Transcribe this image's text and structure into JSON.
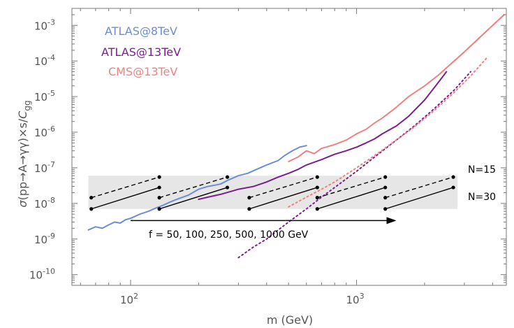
{
  "chart_data": {
    "type": "line",
    "xlabel": "m (GeV)",
    "ylabel": "σ(pp→A→γγ)×s/C_gg",
    "x_scale": "log",
    "y_scale": "log",
    "xlim": [
      55,
      4600
    ],
    "ylim": [
      5e-11,
      0.003
    ],
    "x_ticks": [
      {
        "value": 100,
        "base": "10",
        "exp": "2"
      },
      {
        "value": 1000,
        "base": "10",
        "exp": "3"
      }
    ],
    "y_ticks": [
      {
        "value": 0.001,
        "base": "10",
        "exp": "-3"
      },
      {
        "value": 0.0001,
        "base": "10",
        "exp": "-4"
      },
      {
        "value": 1e-05,
        "base": "10",
        "exp": "-5"
      },
      {
        "value": 1e-06,
        "base": "10",
        "exp": "-6"
      },
      {
        "value": 1e-07,
        "base": "10",
        "exp": "-7"
      },
      {
        "value": 1e-08,
        "base": "10",
        "exp": "-8"
      },
      {
        "value": 1e-09,
        "base": "10",
        "exp": "-9"
      },
      {
        "value": 1e-10,
        "base": "10",
        "exp": "-10"
      }
    ],
    "legend_position": "top-left",
    "series": [
      {
        "name": "ATLAS@8TeV",
        "color": "#6B8DD6",
        "style": "solid",
        "x": [
          65,
          70,
          75,
          80,
          85,
          90,
          95,
          100,
          110,
          120,
          130,
          140,
          150,
          165,
          180,
          200,
          220,
          250,
          270,
          300,
          330,
          360,
          400,
          450,
          480,
          520,
          560,
          600
        ],
        "y": [
          1.8e-09,
          2.2e-09,
          2e-09,
          2.5e-09,
          3e-09,
          2.8e-09,
          3.5e-09,
          3.8e-09,
          5e-09,
          6e-09,
          7.5e-09,
          9e-09,
          1.1e-08,
          1.4e-08,
          1.7e-08,
          2.5e-08,
          3e-08,
          3.5e-08,
          4.5e-08,
          6e-08,
          7e-08,
          9e-08,
          1.2e-07,
          1.6e-07,
          2.2e-07,
          3e-07,
          3.8e-07,
          4.2e-07
        ]
      },
      {
        "name": "ATLAS@13TeV",
        "color": "#7B1E8E",
        "style": "solid",
        "x": [
          200,
          220,
          250,
          280,
          300,
          350,
          400,
          450,
          500,
          550,
          600,
          700,
          800,
          900,
          1000,
          1100,
          1200,
          1300,
          1500,
          1700,
          2000,
          2300,
          2500
        ],
        "y": [
          1.3e-08,
          1.5e-08,
          1.8e-08,
          2.2e-08,
          2.5e-08,
          3e-08,
          4e-08,
          5.5e-08,
          7e-08,
          9e-08,
          1.2e-07,
          1.7e-07,
          2.4e-07,
          3e-07,
          3.8e-07,
          5e-07,
          6.5e-07,
          9e-07,
          1.5e-06,
          2.8e-06,
          8e-06,
          2.5e-05,
          5e-05
        ]
      },
      {
        "name": "CMS@13TeV",
        "color": "#F08080",
        "style": "solid",
        "x": [
          500,
          550,
          600,
          650,
          700,
          800,
          900,
          1000,
          1100,
          1200,
          1300,
          1500,
          1700,
          2000,
          2300,
          2600,
          3000,
          3500,
          4000,
          4500
        ],
        "y": [
          1.5e-07,
          2e-07,
          3e-07,
          2.5e-07,
          3.5e-07,
          4.5e-07,
          6e-07,
          9e-07,
          1.2e-06,
          1.8e-06,
          2.5e-06,
          5e-06,
          1e-05,
          2e-05,
          4e-05,
          8e-05,
          0.00018,
          0.00045,
          0.001,
          0.002
        ]
      },
      {
        "name": "",
        "color": "#F08080",
        "style": "dashed",
        "x": [
          2600,
          3000,
          3500,
          4000,
          4500
        ],
        "y": [
          8e-05,
          0.00018,
          0.00045,
          0.001,
          0.002
        ]
      },
      {
        "name": "",
        "color": "#7B1E8E",
        "style": "dotted",
        "x": [
          300,
          350,
          400,
          450,
          500,
          600,
          700,
          800,
          1000,
          1200,
          1500,
          1800,
          2200,
          2700,
          3200
        ],
        "y": [
          3e-10,
          6e-10,
          1e-09,
          1.8e-09,
          3e-09,
          7e-09,
          1.5e-08,
          2.8e-08,
          8e-08,
          2e-07,
          6e-07,
          1.5e-06,
          4.5e-06,
          1.5e-05,
          5e-05
        ]
      },
      {
        "name": "",
        "color": "#F08080",
        "style": "dotted",
        "x": [
          500,
          600,
          700,
          800,
          1000,
          1200,
          1500,
          1800,
          2200,
          2700,
          3200,
          3800
        ],
        "y": [
          8e-09,
          1.5e-08,
          2.5e-08,
          4e-08,
          1e-07,
          2.2e-07,
          6e-07,
          1.4e-06,
          4e-06,
          1.3e-05,
          3.8e-05,
          0.00013
        ]
      }
    ],
    "band": {
      "y_range": [
        7e-09,
        6e-08
      ],
      "x_range": [
        65,
        2800
      ],
      "color": "#E6E6E6"
    },
    "benchmark_lines": [
      {
        "label": "N=15",
        "style": "dashed",
        "segments": [
          {
            "x": [
              67,
              134
            ],
            "y": [
              1.45e-08,
              5.5e-08
            ]
          },
          {
            "x": [
              134,
              268
            ],
            "y": [
              1.45e-08,
              5.5e-08
            ]
          },
          {
            "x": [
              335,
              670
            ],
            "y": [
              1.45e-08,
              5.5e-08
            ]
          },
          {
            "x": [
              670,
              1340
            ],
            "y": [
              1.45e-08,
              5.5e-08
            ]
          },
          {
            "x": [
              1340,
              2680
            ],
            "y": [
              1.45e-08,
              5.5e-08
            ]
          }
        ]
      },
      {
        "label": "N=30",
        "style": "solid",
        "segments": [
          {
            "x": [
              67,
              134
            ],
            "y": [
              7e-09,
              2.8e-08
            ]
          },
          {
            "x": [
              134,
              268
            ],
            "y": [
              7e-09,
              2.8e-08
            ]
          },
          {
            "x": [
              335,
              670
            ],
            "y": [
              7e-09,
              2.8e-08
            ]
          },
          {
            "x": [
              670,
              1340
            ],
            "y": [
              7e-09,
              2.8e-08
            ]
          },
          {
            "x": [
              1340,
              2680
            ],
            "y": [
              7e-09,
              2.8e-08
            ]
          }
        ]
      }
    ],
    "annotations": [
      {
        "text": "N=15"
      },
      {
        "text": "N=30"
      },
      {
        "text": "f = 50, 100, 250, 500, 1000 GeV"
      }
    ],
    "arrow": {
      "x": [
        100,
        1500
      ],
      "y": [
        3.3e-09,
        3.3e-09
      ]
    }
  }
}
